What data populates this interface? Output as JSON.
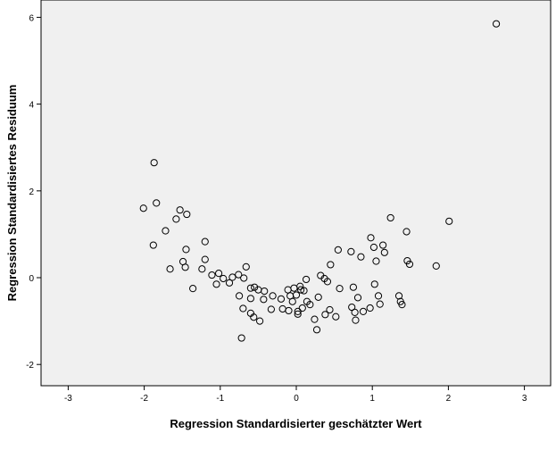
{
  "chart_data": {
    "type": "scatter",
    "title": "",
    "xlabel": "Regression Standardisierter geschätzter Wert",
    "ylabel": "Regression Standardisiertes Residuum",
    "xlim": [
      -3.4,
      3.4
    ],
    "ylim": [
      -2.4,
      6.3
    ],
    "xticks": [
      -3,
      -2,
      -1,
      0,
      1,
      2,
      3
    ],
    "yticks": [
      -2,
      0,
      2,
      4,
      6
    ],
    "xtick_labels": [
      "-3",
      "-2",
      "-1",
      "0",
      "1",
      "2",
      "3"
    ],
    "ytick_labels": [
      "-2",
      "0",
      "2",
      "4",
      "6"
    ],
    "grid": false,
    "legend": "none",
    "colors": {
      "plot_background": "#f0f0f0",
      "marker": "#000000"
    },
    "points": [
      [
        2.63,
        5.85
      ],
      [
        -1.87,
        2.65
      ],
      [
        -2.01,
        1.6
      ],
      [
        -1.84,
        1.72
      ],
      [
        -1.53,
        1.56
      ],
      [
        -1.44,
        1.46
      ],
      [
        -1.58,
        1.35
      ],
      [
        -1.72,
        1.08
      ],
      [
        -1.88,
        0.75
      ],
      [
        -1.2,
        0.83
      ],
      [
        -1.45,
        0.65
      ],
      [
        -1.66,
        0.2
      ],
      [
        -1.49,
        0.37
      ],
      [
        -1.46,
        0.24
      ],
      [
        -1.24,
        0.2
      ],
      [
        -1.2,
        0.42
      ],
      [
        -1.11,
        0.06
      ],
      [
        -1.02,
        0.1
      ],
      [
        -1.36,
        -0.25
      ],
      [
        -1.05,
        -0.15
      ],
      [
        -0.96,
        -0.02
      ],
      [
        -0.88,
        -0.12
      ],
      [
        -0.84,
        0.01
      ],
      [
        -0.76,
        0.07
      ],
      [
        -0.66,
        0.25
      ],
      [
        -0.69,
        -0.01
      ],
      [
        -0.55,
        -0.22
      ],
      [
        -0.6,
        -0.24
      ],
      [
        -0.5,
        -0.28
      ],
      [
        -0.42,
        -0.31
      ],
      [
        -0.75,
        -0.42
      ],
      [
        -0.6,
        -0.48
      ],
      [
        -0.43,
        -0.5
      ],
      [
        -0.31,
        -0.42
      ],
      [
        -0.2,
        -0.49
      ],
      [
        -0.7,
        -0.71
      ],
      [
        -0.6,
        -0.82
      ],
      [
        -0.56,
        -0.91
      ],
      [
        -0.48,
        -1.0
      ],
      [
        -0.33,
        -0.73
      ],
      [
        -0.18,
        -0.72
      ],
      [
        -0.1,
        -0.76
      ],
      [
        -0.11,
        -0.28
      ],
      [
        -0.08,
        -0.42
      ],
      [
        -0.05,
        -0.55
      ],
      [
        0.0,
        -0.4
      ],
      [
        0.06,
        -0.28
      ],
      [
        0.1,
        -0.3
      ],
      [
        0.05,
        -0.2
      ],
      [
        0.02,
        -0.78
      ],
      [
        0.02,
        -0.84
      ],
      [
        0.14,
        -0.55
      ],
      [
        0.18,
        -0.62
      ],
      [
        0.24,
        -0.96
      ],
      [
        0.29,
        -0.45
      ],
      [
        0.32,
        0.05
      ],
      [
        0.37,
        -0.02
      ],
      [
        0.41,
        -0.09
      ],
      [
        0.45,
        0.3
      ],
      [
        0.38,
        -0.85
      ],
      [
        0.44,
        -0.74
      ],
      [
        0.52,
        -0.9
      ],
      [
        0.55,
        0.64
      ],
      [
        0.57,
        -0.25
      ],
      [
        0.27,
        -1.2
      ],
      [
        -0.72,
        -1.39
      ],
      [
        0.72,
        0.6
      ],
      [
        0.75,
        -0.22
      ],
      [
        0.81,
        -0.46
      ],
      [
        0.85,
        0.48
      ],
      [
        0.73,
        -0.68
      ],
      [
        0.77,
        -0.8
      ],
      [
        0.88,
        -0.78
      ],
      [
        0.97,
        -0.7
      ],
      [
        0.98,
        0.92
      ],
      [
        1.02,
        0.7
      ],
      [
        1.05,
        0.38
      ],
      [
        1.08,
        -0.42
      ],
      [
        1.1,
        -0.61
      ],
      [
        1.14,
        0.75
      ],
      [
        1.16,
        0.58
      ],
      [
        1.24,
        1.38
      ],
      [
        1.03,
        -0.15
      ],
      [
        1.35,
        -0.42
      ],
      [
        1.37,
        -0.55
      ],
      [
        1.39,
        -0.62
      ],
      [
        1.45,
        1.06
      ],
      [
        1.46,
        0.39
      ],
      [
        1.49,
        0.31
      ],
      [
        1.84,
        0.27
      ],
      [
        2.01,
        1.3
      ],
      [
        -0.03,
        -0.24
      ],
      [
        0.13,
        -0.04
      ],
      [
        0.08,
        -0.7
      ],
      [
        0.78,
        -0.98
      ]
    ]
  }
}
